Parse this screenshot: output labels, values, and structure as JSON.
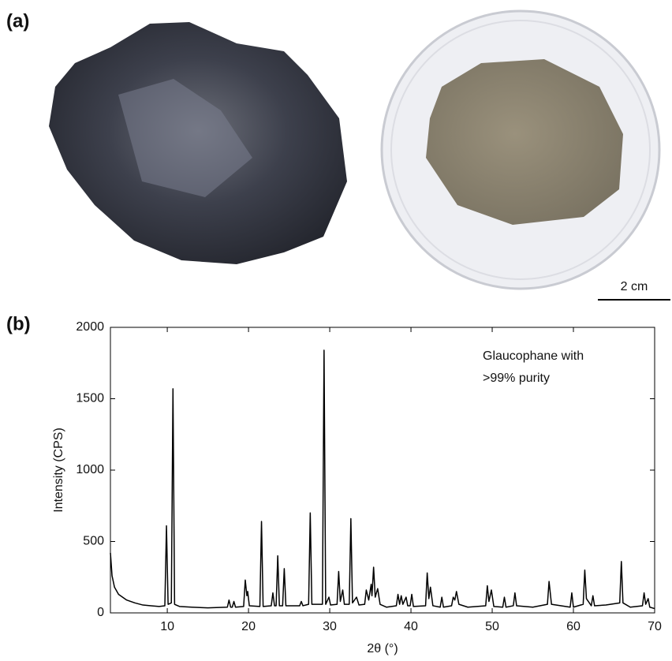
{
  "panels": {
    "a": "(a)",
    "b": "(b)"
  },
  "scale_bar": "2 cm",
  "chart_data": {
    "type": "line",
    "xlabel": "2θ (°)",
    "ylabel": "Intensity (CPS)",
    "annotation": [
      "Glaucophane with",
      ">99% purity"
    ],
    "color": "#000000",
    "xlim": [
      3,
      70
    ],
    "ylim": [
      0,
      2000
    ],
    "xticks": [
      10,
      20,
      30,
      40,
      50,
      60,
      70
    ],
    "yticks": [
      0,
      500,
      1000,
      1500,
      2000
    ],
    "x": [
      3.0,
      3.2,
      3.5,
      4,
      5,
      6,
      7,
      8,
      9,
      9.7,
      9.9,
      10.1,
      10.5,
      10.7,
      10.9,
      11.5,
      13,
      15,
      17.4,
      17.6,
      17.8,
      18.0,
      18.2,
      18.4,
      19.4,
      19.6,
      19.8,
      19.9,
      20.1,
      21.4,
      21.6,
      21.8,
      22.8,
      23.0,
      23.2,
      23.4,
      23.6,
      23.8,
      24.2,
      24.4,
      24.6,
      26.3,
      26.5,
      26.7,
      27.4,
      27.6,
      27.8,
      28.6,
      29.1,
      29.3,
      29.5,
      29.9,
      30.1,
      30.9,
      31.1,
      31.3,
      31.6,
      31.8,
      32.4,
      32.6,
      32.8,
      33.3,
      33.6,
      34.3,
      34.5,
      34.8,
      35.1,
      35.2,
      35.4,
      35.6,
      35.9,
      36.2,
      37,
      38.2,
      38.4,
      38.6,
      38.8,
      39.0,
      39.4,
      39.6,
      39.9,
      40.1,
      40.3,
      41.8,
      42.0,
      42.2,
      42.4,
      42.7,
      43.6,
      43.8,
      44.0,
      45.0,
      45.2,
      45.4,
      45.6,
      45.9,
      47,
      49.2,
      49.4,
      49.6,
      49.9,
      50.2,
      51.3,
      51.5,
      51.7,
      52.6,
      52.8,
      53.0,
      55,
      56.8,
      57.0,
      57.3,
      59.6,
      59.8,
      60.0,
      61.2,
      61.4,
      61.6,
      62.2,
      62.4,
      62.6,
      64,
      65.7,
      65.9,
      66.1,
      67,
      68.5,
      68.7,
      68.9,
      69.2,
      69.4,
      70
    ],
    "values": [
      420,
      260,
      180,
      130,
      90,
      70,
      55,
      50,
      45,
      50,
      610,
      60,
      70,
      1570,
      60,
      45,
      40,
      35,
      40,
      90,
      40,
      40,
      80,
      40,
      45,
      230,
      120,
      150,
      50,
      45,
      640,
      45,
      50,
      140,
      50,
      50,
      400,
      50,
      50,
      310,
      50,
      50,
      80,
      50,
      60,
      700,
      60,
      60,
      60,
      1840,
      60,
      110,
      55,
      60,
      290,
      80,
      160,
      60,
      60,
      660,
      70,
      110,
      55,
      60,
      160,
      90,
      200,
      120,
      320,
      110,
      170,
      60,
      40,
      50,
      130,
      60,
      120,
      60,
      110,
      50,
      50,
      130,
      45,
      50,
      280,
      100,
      180,
      50,
      40,
      110,
      40,
      50,
      110,
      90,
      150,
      60,
      40,
      50,
      190,
      80,
      160,
      45,
      40,
      110,
      40,
      50,
      140,
      50,
      40,
      60,
      220,
      60,
      40,
      140,
      40,
      60,
      300,
      100,
      50,
      120,
      50,
      55,
      70,
      360,
      70,
      40,
      50,
      140,
      60,
      100,
      40,
      30
    ]
  }
}
